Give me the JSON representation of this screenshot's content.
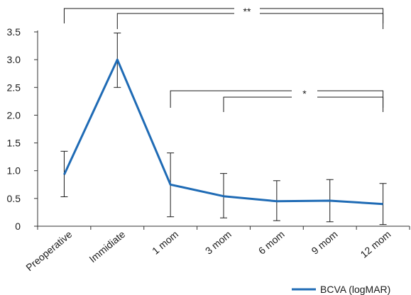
{
  "colors": {
    "line": "#1f6bb5",
    "axis": "#333333",
    "error_bar": "#1a1a1a",
    "bracket": "#1a1a1a"
  },
  "chart_data": {
    "type": "line",
    "categories": [
      "Preoperative",
      "Immidiate",
      "1 mom",
      "3 mom",
      "6 mom",
      "9 mom",
      "12 mom"
    ],
    "series": [
      {
        "name": "BCVA (logMAR)",
        "values": [
          0.93,
          3.0,
          0.75,
          0.54,
          0.45,
          0.46,
          0.4
        ],
        "error_high": [
          1.35,
          3.48,
          1.32,
          0.95,
          0.82,
          0.84,
          0.77
        ],
        "error_low": [
          0.53,
          2.5,
          0.17,
          0.15,
          0.1,
          0.08,
          0.03
        ]
      }
    ],
    "yticks": [
      "0",
      "0.5",
      "1.0",
      "1.5",
      "2.0",
      "2.5",
      "3.0",
      "3.5"
    ],
    "ylim": [
      0,
      3.5
    ],
    "grid": false,
    "legend_position": "bottom-right",
    "annotations": [
      {
        "label": "**",
        "from": 0,
        "to": 6
      },
      {
        "label": "**",
        "from": 1,
        "to": 6
      },
      {
        "label": "*",
        "from": 2,
        "to": 6
      },
      {
        "label": "*",
        "from": 3,
        "to": 6
      }
    ]
  }
}
